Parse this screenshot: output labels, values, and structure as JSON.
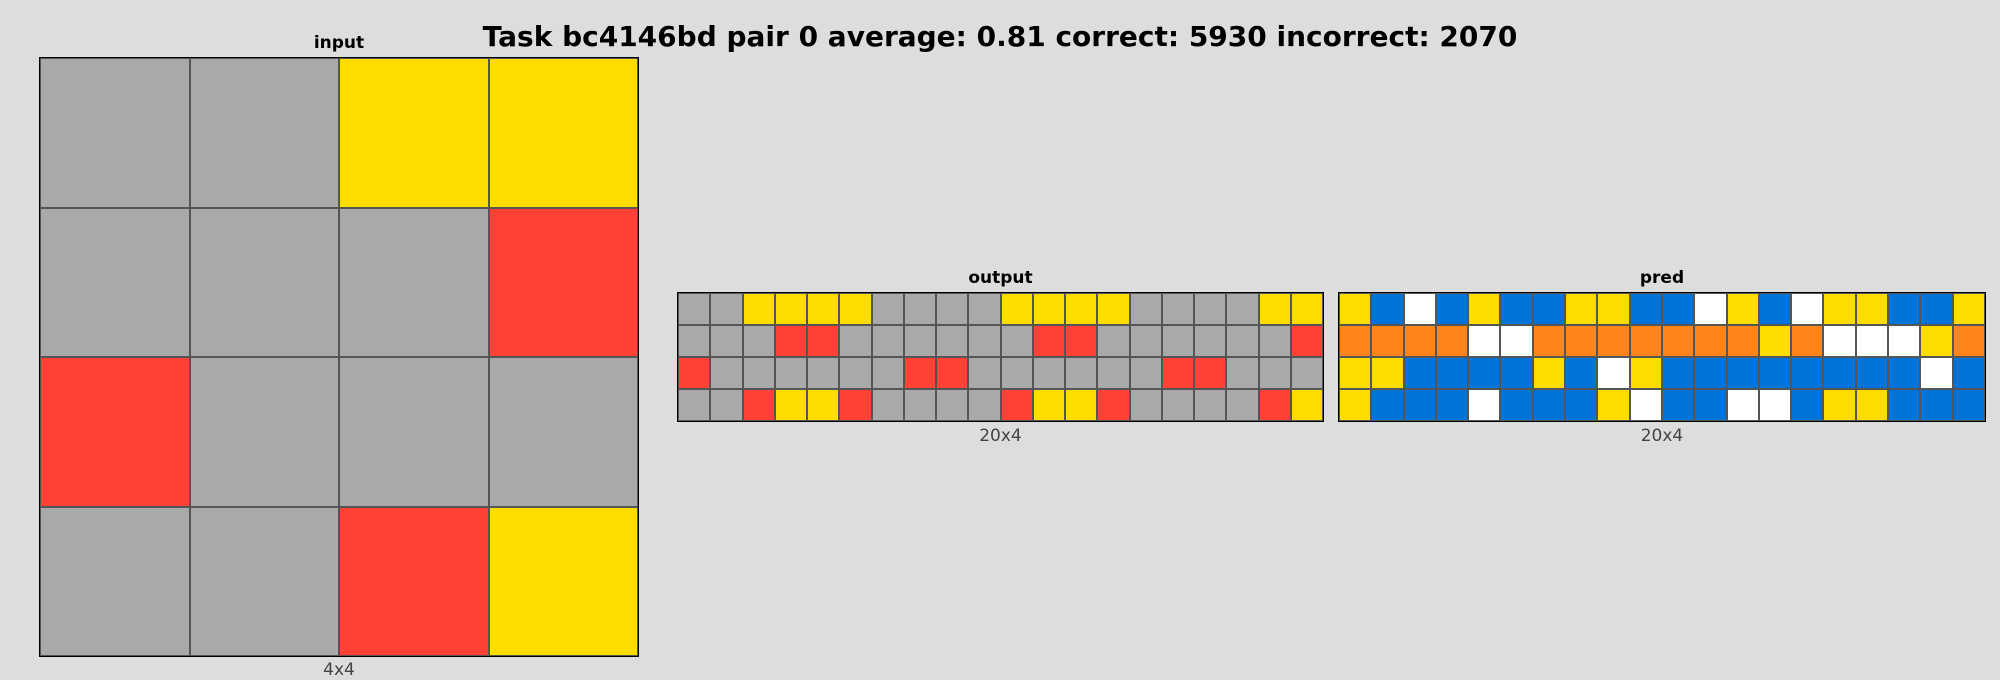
{
  "title": "Task bc4146bd pair 0 average: 0.81 correct: 5930 incorrect: 2070",
  "palette": {
    "0": "#ffffff",
    "1": "#0074d9",
    "2": "#ff4136",
    "4": "#ffdc00",
    "5": "#a9a9a9",
    "7": "#ff851b"
  },
  "panels": {
    "input": {
      "title": "input",
      "caption": "4x4",
      "grid": [
        [
          5,
          5,
          4,
          4
        ],
        [
          5,
          5,
          5,
          2
        ],
        [
          2,
          5,
          5,
          5
        ],
        [
          5,
          5,
          2,
          4
        ]
      ]
    },
    "output": {
      "title": "output",
      "caption": "20x4",
      "grid": [
        [
          5,
          5,
          4,
          4,
          4,
          4,
          5,
          5,
          5,
          5,
          4,
          4,
          4,
          4,
          5,
          5,
          5,
          5,
          4,
          4
        ],
        [
          5,
          5,
          5,
          2,
          2,
          5,
          5,
          5,
          5,
          5,
          5,
          2,
          2,
          5,
          5,
          5,
          5,
          5,
          5,
          2
        ],
        [
          2,
          5,
          5,
          5,
          5,
          5,
          5,
          2,
          2,
          5,
          5,
          5,
          5,
          5,
          5,
          2,
          2,
          5,
          5,
          5
        ],
        [
          5,
          5,
          2,
          4,
          4,
          2,
          5,
          5,
          5,
          5,
          2,
          4,
          4,
          2,
          5,
          5,
          5,
          5,
          2,
          4
        ]
      ]
    },
    "pred": {
      "title": "pred",
      "caption": "20x4",
      "grid": [
        [
          4,
          1,
          0,
          1,
          4,
          1,
          1,
          4,
          4,
          1,
          1,
          0,
          4,
          1,
          0,
          4,
          4,
          1,
          1,
          4
        ],
        [
          7,
          7,
          7,
          7,
          0,
          0,
          7,
          7,
          7,
          7,
          7,
          7,
          7,
          4,
          7,
          0,
          0,
          0,
          4,
          7
        ],
        [
          4,
          4,
          1,
          1,
          1,
          1,
          4,
          1,
          0,
          4,
          1,
          1,
          1,
          1,
          1,
          1,
          1,
          1,
          0,
          1
        ],
        [
          4,
          1,
          1,
          1,
          0,
          1,
          1,
          1,
          4,
          0,
          1,
          1,
          0,
          0,
          1,
          4,
          4,
          1,
          1,
          1
        ]
      ]
    }
  }
}
